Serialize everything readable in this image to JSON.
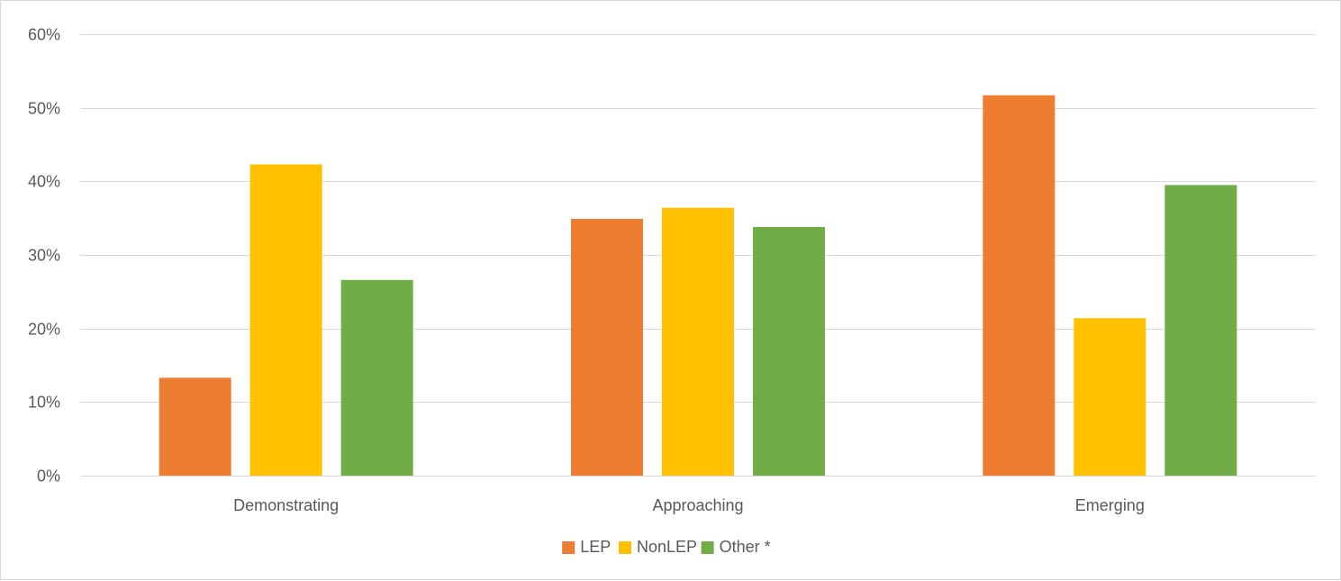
{
  "chart_data": {
    "type": "bar",
    "categories": [
      "Demonstrating",
      "Approaching",
      "Emerging"
    ],
    "series": [
      {
        "name": "LEP",
        "color": "#ED7D31",
        "values": [
          13.3,
          34.9,
          51.7
        ]
      },
      {
        "name": "NonLEP",
        "color": "#FFC000",
        "values": [
          42.3,
          36.4,
          21.4
        ]
      },
      {
        "name": "Other *",
        "color": "#70AD47",
        "values": [
          26.6,
          33.8,
          39.5
        ]
      }
    ],
    "y_ticks": [
      0,
      10,
      20,
      30,
      40,
      50,
      60
    ],
    "y_tick_labels": [
      "0%",
      "10%",
      "20%",
      "30%",
      "40%",
      "50%",
      "60%"
    ],
    "ylim": [
      0,
      60
    ],
    "grid": true,
    "legend_position": "bottom-center"
  }
}
